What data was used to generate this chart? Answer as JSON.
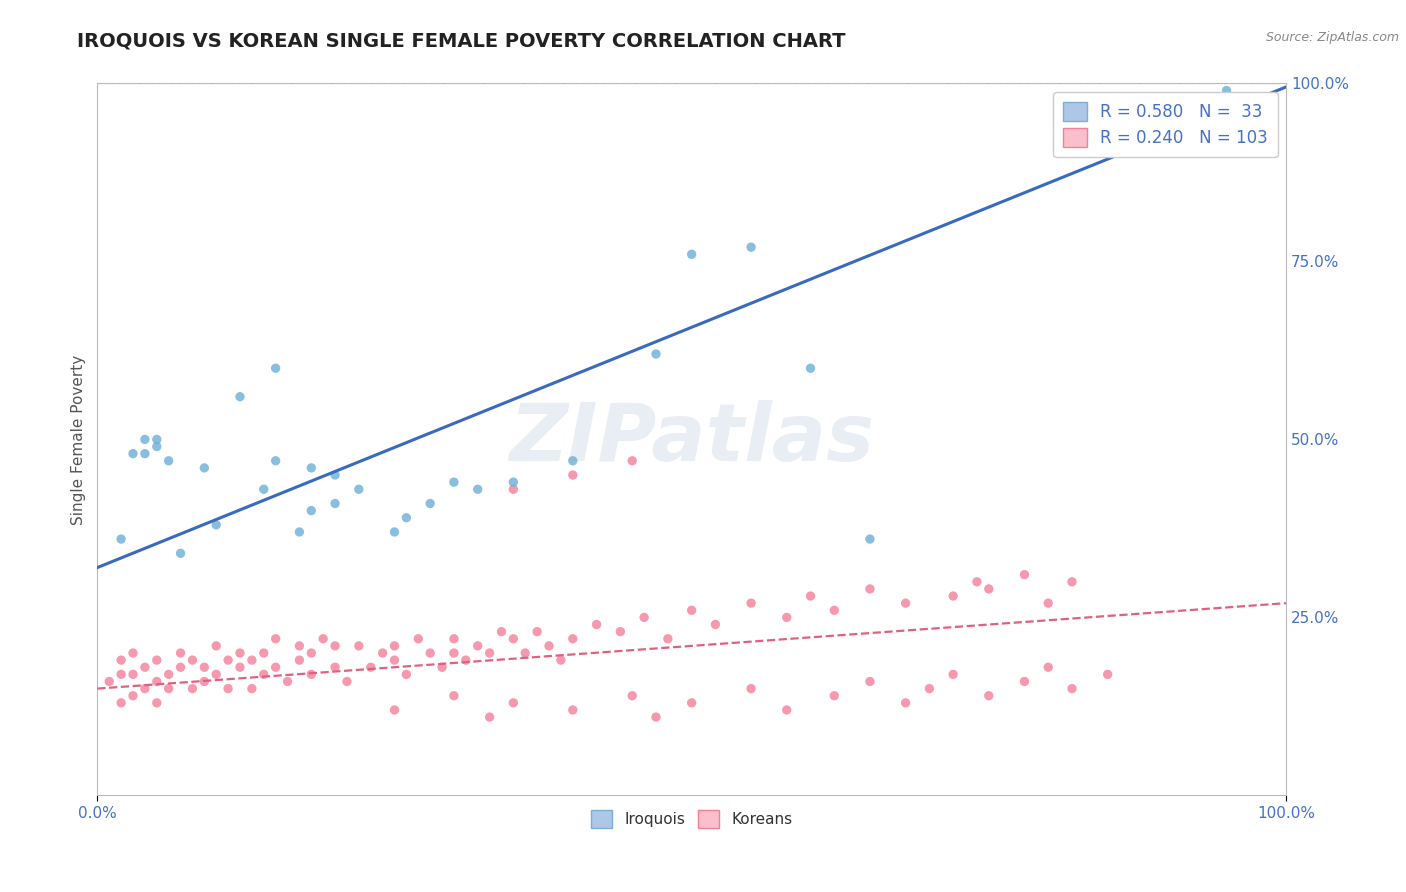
{
  "title": "IROQUOIS VS KOREAN SINGLE FEMALE POVERTY CORRELATION CHART",
  "source": "Source: ZipAtlas.com",
  "ylabel": "Single Female Poverty",
  "xlabel": "",
  "watermark": "ZIPatlas",
  "xlim": [
    0,
    1
  ],
  "ylim": [
    0,
    1
  ],
  "legend_R_N": [
    {
      "label": "R = 0.580   N =  33",
      "face": "#aec6e8",
      "edge": "#7bafd4"
    },
    {
      "label": "R = 0.240   N = 103",
      "face": "#f9c0cb",
      "edge": "#f47f9a"
    }
  ],
  "legend_bottom": [
    "Iroquois",
    "Koreans"
  ],
  "iroquois_x": [
    0.02,
    0.03,
    0.04,
    0.04,
    0.05,
    0.05,
    0.06,
    0.07,
    0.09,
    0.1,
    0.12,
    0.14,
    0.15,
    0.17,
    0.18,
    0.2,
    0.22,
    0.25,
    0.26,
    0.28,
    0.3,
    0.32,
    0.35,
    0.4,
    0.47,
    0.5,
    0.55,
    0.6,
    0.65,
    0.95,
    0.15,
    0.18,
    0.2
  ],
  "iroquois_y": [
    0.36,
    0.48,
    0.5,
    0.48,
    0.49,
    0.5,
    0.47,
    0.34,
    0.46,
    0.38,
    0.56,
    0.43,
    0.47,
    0.37,
    0.4,
    0.41,
    0.43,
    0.37,
    0.39,
    0.41,
    0.44,
    0.43,
    0.44,
    0.47,
    0.62,
    0.76,
    0.77,
    0.6,
    0.36,
    0.99,
    0.6,
    0.46,
    0.45
  ],
  "iroquois_line_x": [
    0.0,
    1.0
  ],
  "iroquois_line_y": [
    0.32,
    0.995
  ],
  "korean_x": [
    0.01,
    0.02,
    0.02,
    0.02,
    0.03,
    0.03,
    0.03,
    0.04,
    0.04,
    0.05,
    0.05,
    0.05,
    0.06,
    0.06,
    0.07,
    0.07,
    0.08,
    0.08,
    0.09,
    0.09,
    0.1,
    0.1,
    0.11,
    0.11,
    0.12,
    0.12,
    0.13,
    0.13,
    0.14,
    0.14,
    0.15,
    0.15,
    0.16,
    0.17,
    0.17,
    0.18,
    0.18,
    0.19,
    0.2,
    0.2,
    0.21,
    0.22,
    0.23,
    0.24,
    0.25,
    0.25,
    0.26,
    0.27,
    0.28,
    0.29,
    0.3,
    0.3,
    0.31,
    0.32,
    0.33,
    0.34,
    0.35,
    0.36,
    0.37,
    0.38,
    0.39,
    0.4,
    0.42,
    0.44,
    0.46,
    0.48,
    0.5,
    0.52,
    0.55,
    0.58,
    0.6,
    0.62,
    0.65,
    0.68,
    0.72,
    0.74,
    0.75,
    0.78,
    0.8,
    0.82,
    0.25,
    0.3,
    0.33,
    0.35,
    0.4,
    0.45,
    0.47,
    0.5,
    0.55,
    0.58,
    0.62,
    0.65,
    0.68,
    0.7,
    0.72,
    0.75,
    0.78,
    0.8,
    0.82,
    0.85,
    0.35,
    0.4,
    0.45
  ],
  "korean_y": [
    0.16,
    0.13,
    0.17,
    0.19,
    0.14,
    0.17,
    0.2,
    0.15,
    0.18,
    0.13,
    0.16,
    0.19,
    0.15,
    0.17,
    0.18,
    0.2,
    0.15,
    0.19,
    0.16,
    0.18,
    0.17,
    0.21,
    0.15,
    0.19,
    0.18,
    0.2,
    0.15,
    0.19,
    0.17,
    0.2,
    0.18,
    0.22,
    0.16,
    0.21,
    0.19,
    0.17,
    0.2,
    0.22,
    0.18,
    0.21,
    0.16,
    0.21,
    0.18,
    0.2,
    0.21,
    0.19,
    0.17,
    0.22,
    0.2,
    0.18,
    0.2,
    0.22,
    0.19,
    0.21,
    0.2,
    0.23,
    0.22,
    0.2,
    0.23,
    0.21,
    0.19,
    0.22,
    0.24,
    0.23,
    0.25,
    0.22,
    0.26,
    0.24,
    0.27,
    0.25,
    0.28,
    0.26,
    0.29,
    0.27,
    0.28,
    0.3,
    0.29,
    0.31,
    0.27,
    0.3,
    0.12,
    0.14,
    0.11,
    0.13,
    0.12,
    0.14,
    0.11,
    0.13,
    0.15,
    0.12,
    0.14,
    0.16,
    0.13,
    0.15,
    0.17,
    0.14,
    0.16,
    0.18,
    0.15,
    0.17,
    0.43,
    0.45,
    0.47
  ],
  "korean_line_x": [
    0.0,
    1.0
  ],
  "korean_line_y": [
    0.15,
    0.27
  ],
  "title_color": "#222222",
  "title_fontsize": 14,
  "scatter_alpha": 0.8,
  "scatter_size": 45,
  "iroquois_dot_color": "#6baed6",
  "korean_dot_color": "#f47f9a",
  "line_iroquois_color": "#3a6abf",
  "line_korean_color": "#e06080",
  "grid_color": "#cccccc",
  "background_color": "#ffffff",
  "tick_color": "#4472c4",
  "label_color": "#555555"
}
